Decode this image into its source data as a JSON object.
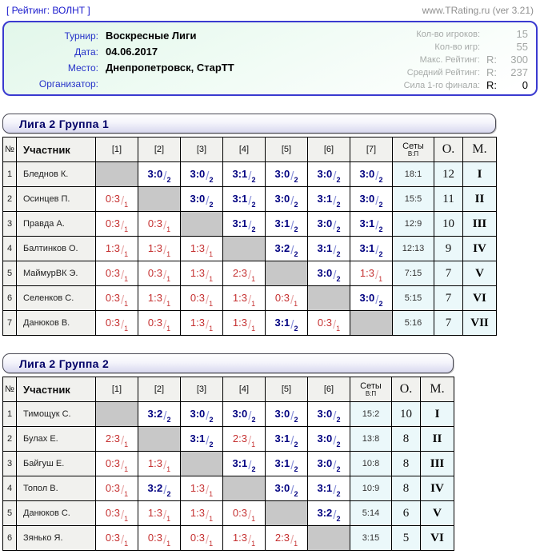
{
  "top_bar": {
    "rating_link": "[ Рейтинг: ВОЛНТ ]",
    "site_link": "www.TRating.ru (ver 3.21)"
  },
  "info_panel": {
    "fields": [
      {
        "label": "Турнир:",
        "value": "Воскресные Лиги"
      },
      {
        "label": "Дата:",
        "value": "04.06.2017"
      },
      {
        "label": "Место:",
        "value": "Днепропетровск, СтарТТ"
      },
      {
        "label": "Организатор:",
        "value": ""
      }
    ],
    "stats": [
      {
        "label": "Кол-во игроков:",
        "prefix": "",
        "number": "15",
        "highlight": false
      },
      {
        "label": "Кол-во игр:",
        "prefix": "",
        "number": "55",
        "highlight": false
      },
      {
        "label": "Макс. Рейтинг:",
        "prefix": "R:",
        "number": "300",
        "highlight": false
      },
      {
        "label": "Средний Рейтинг:",
        "prefix": "R:",
        "number": "237",
        "highlight": false
      },
      {
        "label": "Сила 1-го финала:",
        "prefix": "R:",
        "number": "0",
        "highlight": true
      }
    ]
  },
  "columns": {
    "num": "№",
    "name": "Участник",
    "sets": "Сеты",
    "sets_sub": "В:П",
    "points": "О.",
    "place": "М."
  },
  "colors": {
    "win_score": "#000080",
    "loss_score": "#c53030",
    "diagonal_cell": "#c8c8c8",
    "header_cell_bg": "#f1f1ee",
    "result_cols_bg": "#ebf8fa",
    "panel_border": "#3a3ad0",
    "label_blue": "#2431c8",
    "title_navy": "#000066"
  },
  "groups": [
    {
      "title": "Лига 2 Группа 1",
      "opponents": [
        "[1]",
        "[2]",
        "[3]",
        "[4]",
        "[5]",
        "[6]",
        "[7]"
      ],
      "rows": [
        {
          "num": "1",
          "name": "Бледнов К.",
          "cells": [
            null,
            {
              "s": "3:0",
              "p": "2",
              "w": true
            },
            {
              "s": "3:0",
              "p": "2",
              "w": true
            },
            {
              "s": "3:1",
              "p": "2",
              "w": true
            },
            {
              "s": "3:0",
              "p": "2",
              "w": true
            },
            {
              "s": "3:0",
              "p": "2",
              "w": true
            },
            {
              "s": "3:0",
              "p": "2",
              "w": true
            }
          ],
          "sets": "18:1",
          "points": "12",
          "place": "I"
        },
        {
          "num": "2",
          "name": "Осинцев П.",
          "cells": [
            {
              "s": "0:3",
              "p": "1",
              "w": false
            },
            null,
            {
              "s": "3:0",
              "p": "2",
              "w": true
            },
            {
              "s": "3:1",
              "p": "2",
              "w": true
            },
            {
              "s": "3:0",
              "p": "2",
              "w": true
            },
            {
              "s": "3:1",
              "p": "2",
              "w": true
            },
            {
              "s": "3:0",
              "p": "2",
              "w": true
            }
          ],
          "sets": "15:5",
          "points": "11",
          "place": "II"
        },
        {
          "num": "3",
          "name": "Правда А.",
          "cells": [
            {
              "s": "0:3",
              "p": "1",
              "w": false
            },
            {
              "s": "0:3",
              "p": "1",
              "w": false
            },
            null,
            {
              "s": "3:1",
              "p": "2",
              "w": true
            },
            {
              "s": "3:1",
              "p": "2",
              "w": true
            },
            {
              "s": "3:0",
              "p": "2",
              "w": true
            },
            {
              "s": "3:1",
              "p": "2",
              "w": true
            }
          ],
          "sets": "12:9",
          "points": "10",
          "place": "III"
        },
        {
          "num": "4",
          "name": "Балтинков О.",
          "cells": [
            {
              "s": "1:3",
              "p": "1",
              "w": false
            },
            {
              "s": "1:3",
              "p": "1",
              "w": false
            },
            {
              "s": "1:3",
              "p": "1",
              "w": false
            },
            null,
            {
              "s": "3:2",
              "p": "2",
              "w": true
            },
            {
              "s": "3:1",
              "p": "2",
              "w": true
            },
            {
              "s": "3:1",
              "p": "2",
              "w": true
            }
          ],
          "sets": "12:13",
          "points": "9",
          "place": "IV"
        },
        {
          "num": "5",
          "name": "МаймурВК Э.",
          "cells": [
            {
              "s": "0:3",
              "p": "1",
              "w": false
            },
            {
              "s": "0:3",
              "p": "1",
              "w": false
            },
            {
              "s": "1:3",
              "p": "1",
              "w": false
            },
            {
              "s": "2:3",
              "p": "1",
              "w": false
            },
            null,
            {
              "s": "3:0",
              "p": "2",
              "w": true
            },
            {
              "s": "1:3",
              "p": "1",
              "w": false
            }
          ],
          "sets": "7:15",
          "points": "7",
          "place": "V"
        },
        {
          "num": "6",
          "name": "Селенков С.",
          "cells": [
            {
              "s": "0:3",
              "p": "1",
              "w": false
            },
            {
              "s": "1:3",
              "p": "1",
              "w": false
            },
            {
              "s": "0:3",
              "p": "1",
              "w": false
            },
            {
              "s": "1:3",
              "p": "1",
              "w": false
            },
            {
              "s": "0:3",
              "p": "1",
              "w": false
            },
            null,
            {
              "s": "3:0",
              "p": "2",
              "w": true
            }
          ],
          "sets": "5:15",
          "points": "7",
          "place": "VI"
        },
        {
          "num": "7",
          "name": "Данюков В.",
          "cells": [
            {
              "s": "0:3",
              "p": "1",
              "w": false
            },
            {
              "s": "0:3",
              "p": "1",
              "w": false
            },
            {
              "s": "1:3",
              "p": "1",
              "w": false
            },
            {
              "s": "1:3",
              "p": "1",
              "w": false
            },
            {
              "s": "3:1",
              "p": "2",
              "w": true
            },
            {
              "s": "0:3",
              "p": "1",
              "w": false
            },
            null
          ],
          "sets": "5:16",
          "points": "7",
          "place": "VII"
        }
      ]
    },
    {
      "title": "Лига 2 Группа 2",
      "opponents": [
        "[1]",
        "[2]",
        "[3]",
        "[4]",
        "[5]",
        "[6]"
      ],
      "rows": [
        {
          "num": "1",
          "name": "Тимощук С.",
          "cells": [
            null,
            {
              "s": "3:2",
              "p": "2",
              "w": true
            },
            {
              "s": "3:0",
              "p": "2",
              "w": true
            },
            {
              "s": "3:0",
              "p": "2",
              "w": true
            },
            {
              "s": "3:0",
              "p": "2",
              "w": true
            },
            {
              "s": "3:0",
              "p": "2",
              "w": true
            }
          ],
          "sets": "15:2",
          "points": "10",
          "place": "I"
        },
        {
          "num": "2",
          "name": "Булах Е.",
          "cells": [
            {
              "s": "2:3",
              "p": "1",
              "w": false
            },
            null,
            {
              "s": "3:1",
              "p": "2",
              "w": true
            },
            {
              "s": "2:3",
              "p": "1",
              "w": false
            },
            {
              "s": "3:1",
              "p": "2",
              "w": true
            },
            {
              "s": "3:0",
              "p": "2",
              "w": true
            }
          ],
          "sets": "13:8",
          "points": "8",
          "place": "II"
        },
        {
          "num": "3",
          "name": "Байгуш Е.",
          "cells": [
            {
              "s": "0:3",
              "p": "1",
              "w": false
            },
            {
              "s": "1:3",
              "p": "1",
              "w": false
            },
            null,
            {
              "s": "3:1",
              "p": "2",
              "w": true
            },
            {
              "s": "3:1",
              "p": "2",
              "w": true
            },
            {
              "s": "3:0",
              "p": "2",
              "w": true
            }
          ],
          "sets": "10:8",
          "points": "8",
          "place": "III"
        },
        {
          "num": "4",
          "name": "Топол В.",
          "cells": [
            {
              "s": "0:3",
              "p": "1",
              "w": false
            },
            {
              "s": "3:2",
              "p": "2",
              "w": true
            },
            {
              "s": "1:3",
              "p": "1",
              "w": false
            },
            null,
            {
              "s": "3:0",
              "p": "2",
              "w": true
            },
            {
              "s": "3:1",
              "p": "2",
              "w": true
            }
          ],
          "sets": "10:9",
          "points": "8",
          "place": "IV"
        },
        {
          "num": "5",
          "name": "Данюков С.",
          "cells": [
            {
              "s": "0:3",
              "p": "1",
              "w": false
            },
            {
              "s": "1:3",
              "p": "1",
              "w": false
            },
            {
              "s": "1:3",
              "p": "1",
              "w": false
            },
            {
              "s": "0:3",
              "p": "1",
              "w": false
            },
            null,
            {
              "s": "3:2",
              "p": "2",
              "w": true
            }
          ],
          "sets": "5:14",
          "points": "6",
          "place": "V"
        },
        {
          "num": "6",
          "name": "Зянько Я.",
          "cells": [
            {
              "s": "0:3",
              "p": "1",
              "w": false
            },
            {
              "s": "0:3",
              "p": "1",
              "w": false
            },
            {
              "s": "0:3",
              "p": "1",
              "w": false
            },
            {
              "s": "1:3",
              "p": "1",
              "w": false
            },
            {
              "s": "2:3",
              "p": "1",
              "w": false
            },
            null
          ],
          "sets": "3:15",
          "points": "5",
          "place": "VI"
        }
      ]
    }
  ]
}
